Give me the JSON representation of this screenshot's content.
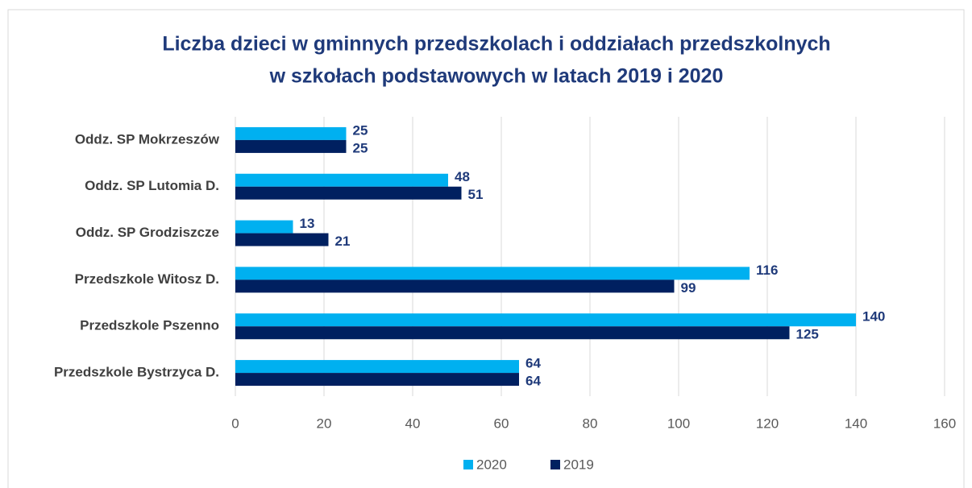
{
  "chart_data": {
    "type": "barh",
    "title": [
      "Liczba dzieci w gminnych przedszkolach i oddziałach przedszkolnych",
      "w szkołach podstawowych w latach 2019 i 2020"
    ],
    "categories": [
      "Oddz. SP Mokrzeszów",
      "Oddz. SP Lutomia D.",
      "Oddz. SP Grodziszcze",
      "Przedszkole Witosz D.",
      "Przedszkole Pszenno",
      "Przedszkole Bystrzyca D."
    ],
    "series": [
      {
        "name": "2020",
        "color": "#00b0f0",
        "values": [
          25,
          48,
          13,
          116,
          140,
          64
        ]
      },
      {
        "name": "2019",
        "color": "#002060",
        "values": [
          25,
          51,
          21,
          99,
          125,
          64
        ]
      }
    ],
    "xlim": [
      0,
      160
    ],
    "xticks": [
      0,
      20,
      40,
      60,
      80,
      100,
      120,
      140,
      160
    ],
    "grid": true,
    "legend": "bottom"
  }
}
